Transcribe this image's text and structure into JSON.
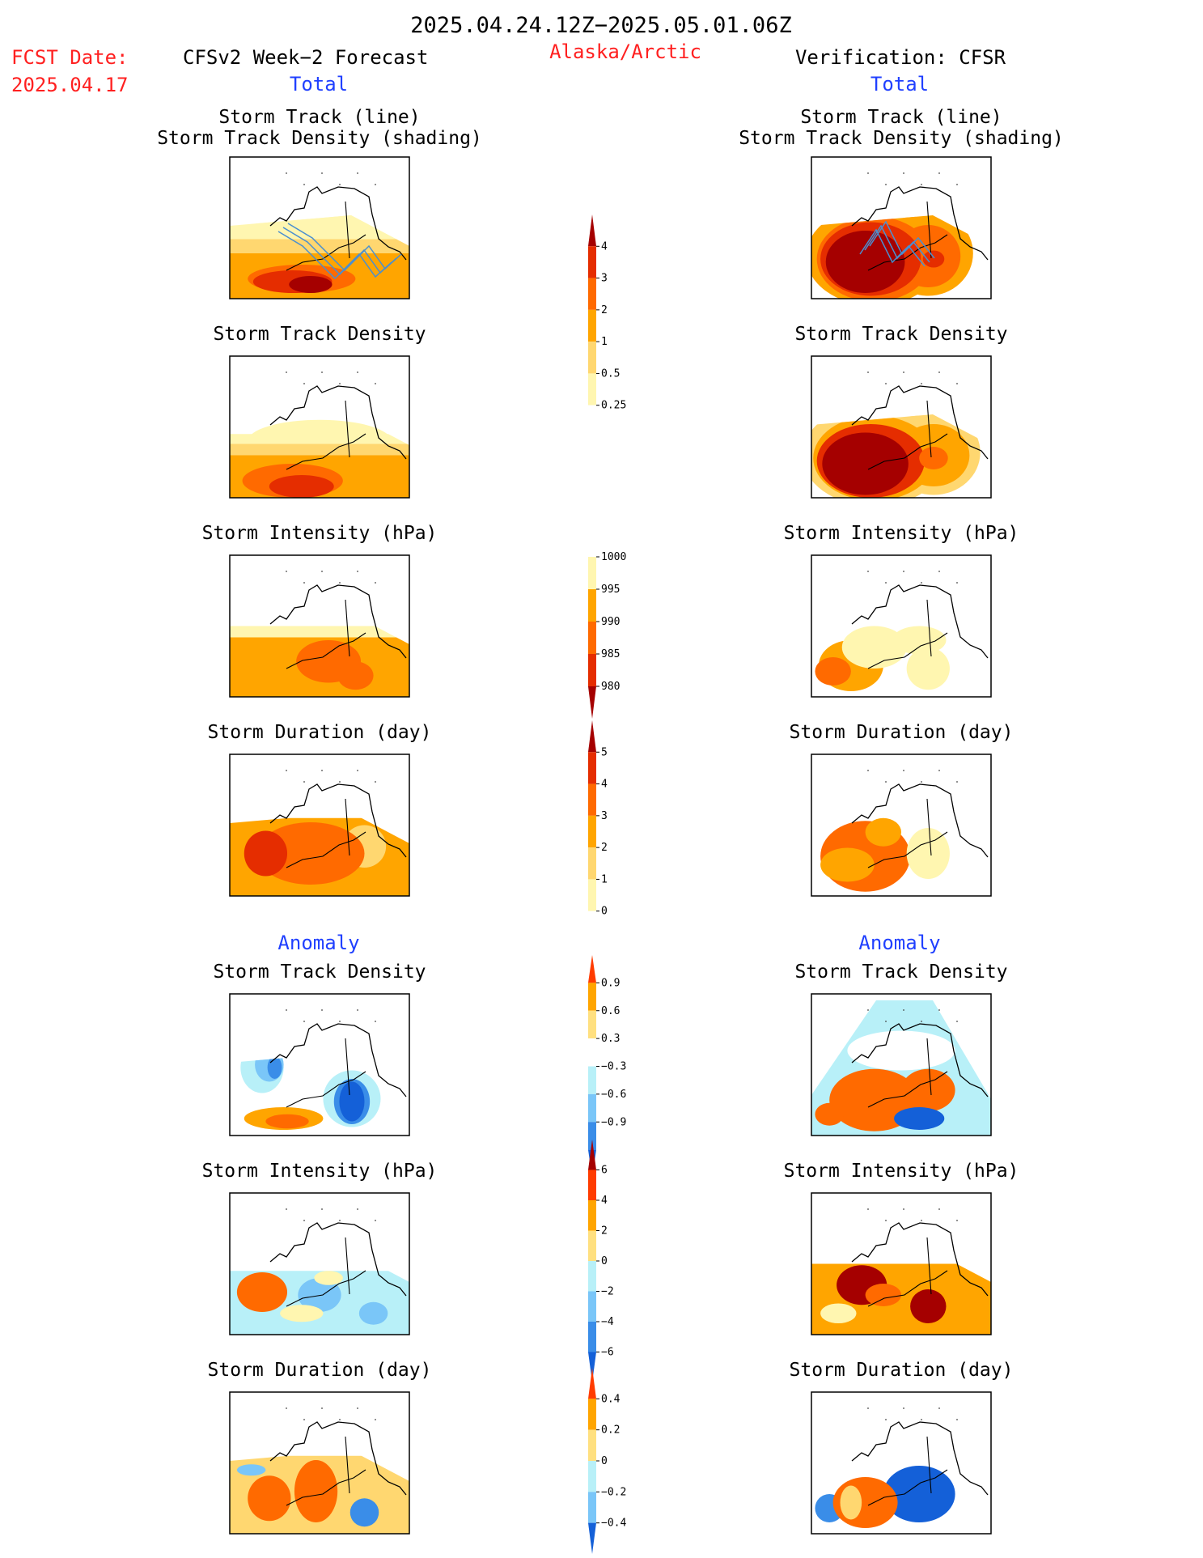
{
  "header": {
    "period": "2025.04.24.12Z−2025.05.01.06Z",
    "fcst_label": "FCST Date:",
    "fcst_date": "2025.04.17",
    "region": "Alaska/Arctic",
    "left_title": "CFSv2 Week−2 Forecast",
    "right_title": "Verification: CFSR",
    "total_label": "Total",
    "anomaly_label": "Anomaly"
  },
  "colors": {
    "red_text": "#ff2020",
    "blue_text": "#2040ff",
    "yellow_1": "#fff6b0",
    "yellow_2": "#ffd770",
    "orange_1": "#ffa500",
    "orange_2": "#ff6a00",
    "red_1": "#e52d00",
    "red_2": "#a50000",
    "blue_1": "#b8f0f8",
    "blue_2": "#7ac6f8",
    "blue_3": "#3a8de8",
    "blue_4": "#1460d8"
  },
  "chart_data": [
    {
      "type": "heatmap",
      "id": "fc_track_total",
      "title": "Storm Track (line)",
      "subtitle": "Storm Track Density (shading)",
      "variable": "storm track density",
      "colorbar": "density"
    },
    {
      "type": "heatmap",
      "id": "ob_track_total",
      "title": "Storm Track (line)",
      "subtitle": "Storm Track Density (shading)",
      "variable": "storm track density",
      "colorbar": "density"
    },
    {
      "type": "heatmap",
      "id": "fc_density_total",
      "title": "Storm Track Density",
      "colorbar": "density"
    },
    {
      "type": "heatmap",
      "id": "ob_density_total",
      "title": "Storm Track Density",
      "colorbar": "density"
    },
    {
      "type": "heatmap",
      "id": "fc_intensity_total",
      "title": "Storm Intensity (hPa)",
      "colorbar": "intensity"
    },
    {
      "type": "heatmap",
      "id": "ob_intensity_total",
      "title": "Storm Intensity (hPa)",
      "colorbar": "intensity"
    },
    {
      "type": "heatmap",
      "id": "fc_duration_total",
      "title": "Storm Duration (day)",
      "colorbar": "duration"
    },
    {
      "type": "heatmap",
      "id": "ob_duration_total",
      "title": "Storm Duration (day)",
      "colorbar": "duration"
    },
    {
      "type": "heatmap",
      "id": "fc_density_anom",
      "title": "Storm Track Density",
      "colorbar": "density_anom"
    },
    {
      "type": "heatmap",
      "id": "ob_density_anom",
      "title": "Storm Track Density",
      "colorbar": "density_anom"
    },
    {
      "type": "heatmap",
      "id": "fc_intensity_anom",
      "title": "Storm Intensity (hPa)",
      "colorbar": "intensity_anom"
    },
    {
      "type": "heatmap",
      "id": "ob_intensity_anom",
      "title": "Storm Intensity (hPa)",
      "colorbar": "intensity_anom"
    },
    {
      "type": "heatmap",
      "id": "fc_duration_anom",
      "title": "Storm Duration (day)",
      "colorbar": "duration_anom"
    },
    {
      "type": "heatmap",
      "id": "ob_duration_anom",
      "title": "Storm Duration (day)",
      "colorbar": "duration_anom"
    }
  ],
  "colorbars": {
    "density": {
      "labels": [
        "4",
        "3",
        "2",
        "1",
        "0.5",
        "0.25"
      ],
      "colors": [
        "#a50000",
        "#e52d00",
        "#ff6a00",
        "#ffa500",
        "#ffd770",
        "#fff6b0",
        "#ffffff"
      ],
      "extend": "max"
    },
    "intensity": {
      "labels": [
        "1000",
        "995",
        "990",
        "985",
        "980"
      ],
      "colors": [
        "#ffffff",
        "#fff6b0",
        "#ffa500",
        "#ff6a00",
        "#e52d00",
        "#a50000"
      ],
      "extend": "min"
    },
    "duration": {
      "labels": [
        "5",
        "4",
        "3",
        "2",
        "1",
        "0"
      ],
      "colors": [
        "#a50000",
        "#e52d00",
        "#ff6a00",
        "#ffa500",
        "#ffd770",
        "#fff6b0",
        "#ffffff"
      ],
      "extend": "max"
    },
    "density_anom": {
      "labels": [
        "0.9",
        "0.6",
        "0.3",
        "−0.3",
        "−0.6",
        "−0.9"
      ],
      "colors": [
        "#ff3c00",
        "#ffa500",
        "#ffe080",
        "#ffffff",
        "#b8f0f8",
        "#7ac6f8",
        "#3a8de8",
        "#1460d8"
      ]
    },
    "intensity_anom": {
      "labels": [
        "6",
        "4",
        "2",
        "0",
        "−2",
        "−4",
        "−6"
      ],
      "colors": [
        "#a50000",
        "#ff3c00",
        "#ffa500",
        "#ffe080",
        "#b8f0f8",
        "#7ac6f8",
        "#3a8de8",
        "#1460d8"
      ]
    },
    "duration_anom": {
      "labels": [
        "0.4",
        "0.2",
        "0",
        "−0.2",
        "−0.4"
      ],
      "colors": [
        "#ff3c00",
        "#ffa500",
        "#ffe080",
        "#b8f0f8",
        "#7ac6f8",
        "#1460d8"
      ]
    }
  }
}
